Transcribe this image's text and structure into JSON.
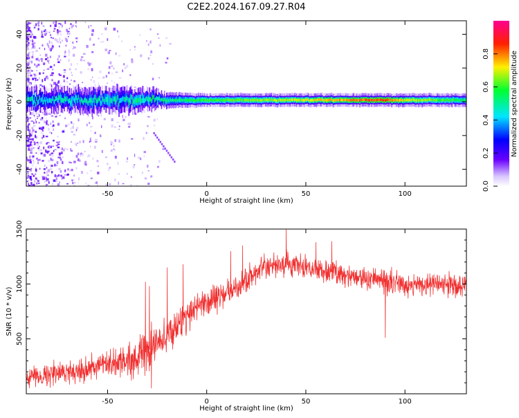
{
  "title": "C2E2.2024.167.09.27.R04",
  "colors": {
    "snr_line": "#f03030",
    "axis": "#000000",
    "ridge_core": "#00e4a0",
    "ridge_edge": "#4000ff",
    "speckle": "#9a5cff"
  },
  "chart_data": [
    {
      "type": "heatmap",
      "title": "C2E2.2024.167.09.27.R04",
      "xlabel": "Height of straight line (km)",
      "ylabel": "Frequency (Hz)",
      "xlim": [
        -91,
        131
      ],
      "ylim": [
        -50,
        48
      ],
      "x_ticks": [
        -50,
        0,
        50,
        100
      ],
      "y_ticks": [
        -40,
        -20,
        0,
        20,
        40
      ],
      "colorbar": {
        "label": "Normalized spectral amplitude",
        "range": [
          0.0,
          1.0
        ],
        "ticks": [
          "0.0",
          "0.2",
          "0.4",
          "0.6",
          "0.8"
        ],
        "colormap": "rainbow (white → violet → blue → cyan → green → yellow → red → magenta)"
      },
      "ridge": {
        "description": "narrow high-amplitude band near 0 Hz",
        "center_hz": 1,
        "points": [
          {
            "x": -91,
            "width_hz": 9,
            "amp": 0.45
          },
          {
            "x": -50,
            "width_hz": 10,
            "amp": 0.45
          },
          {
            "x": -30,
            "width_hz": 9,
            "amp": 0.5
          },
          {
            "x": -20,
            "width_hz": 6,
            "amp": 0.5
          },
          {
            "x": 0,
            "width_hz": 5,
            "amp": 0.6
          },
          {
            "x": 50,
            "width_hz": 5,
            "amp": 0.7
          },
          {
            "x": 90,
            "width_hz": 5,
            "amp": 0.85
          },
          {
            "x": 100,
            "width_hz": 5,
            "amp": 0.7
          },
          {
            "x": 131,
            "width_hz": 5,
            "amp": 0.55
          }
        ]
      }
    },
    {
      "type": "line",
      "xlabel": "Height of straight line (km)",
      "ylabel": "SNR (10 * v/v)",
      "xlim": [
        -91,
        131
      ],
      "ylim": [
        0,
        1500
      ],
      "x_ticks": [
        -50,
        0,
        50,
        100
      ],
      "y_ticks": [
        500,
        1000,
        1500
      ],
      "series": [
        {
          "values_envelope": [
            {
              "x": -91,
              "mean": 150,
              "noise": 90
            },
            {
              "x": -70,
              "mean": 200,
              "noise": 110
            },
            {
              "x": -50,
              "mean": 260,
              "noise": 130
            },
            {
              "x": -35,
              "mean": 330,
              "noise": 170
            },
            {
              "x": -25,
              "mean": 450,
              "noise": 200
            },
            {
              "x": -15,
              "mean": 620,
              "noise": 160
            },
            {
              "x": -5,
              "mean": 800,
              "noise": 150
            },
            {
              "x": 5,
              "mean": 880,
              "noise": 130
            },
            {
              "x": 15,
              "mean": 950,
              "noise": 120
            },
            {
              "x": 25,
              "mean": 1120,
              "noise": 110
            },
            {
              "x": 40,
              "mean": 1180,
              "noise": 110
            },
            {
              "x": 60,
              "mean": 1120,
              "noise": 110
            },
            {
              "x": 80,
              "mean": 1050,
              "noise": 110
            },
            {
              "x": 100,
              "mean": 1000,
              "noise": 110
            },
            {
              "x": 131,
              "mean": 990,
              "noise": 110
            }
          ],
          "spikes": [
            {
              "x": -31,
              "y": 1020
            },
            {
              "x": -29,
              "y": 980
            },
            {
              "x": -20,
              "y": 1150
            },
            {
              "x": -28,
              "y": 50
            },
            {
              "x": -12,
              "y": 1180
            },
            {
              "x": 12,
              "y": 1300
            },
            {
              "x": 18,
              "y": 1350
            },
            {
              "x": 40,
              "y": 1500
            },
            {
              "x": 55,
              "y": 1380
            },
            {
              "x": 63,
              "y": 1390
            },
            {
              "x": 90,
              "y": 510
            }
          ]
        }
      ]
    }
  ]
}
